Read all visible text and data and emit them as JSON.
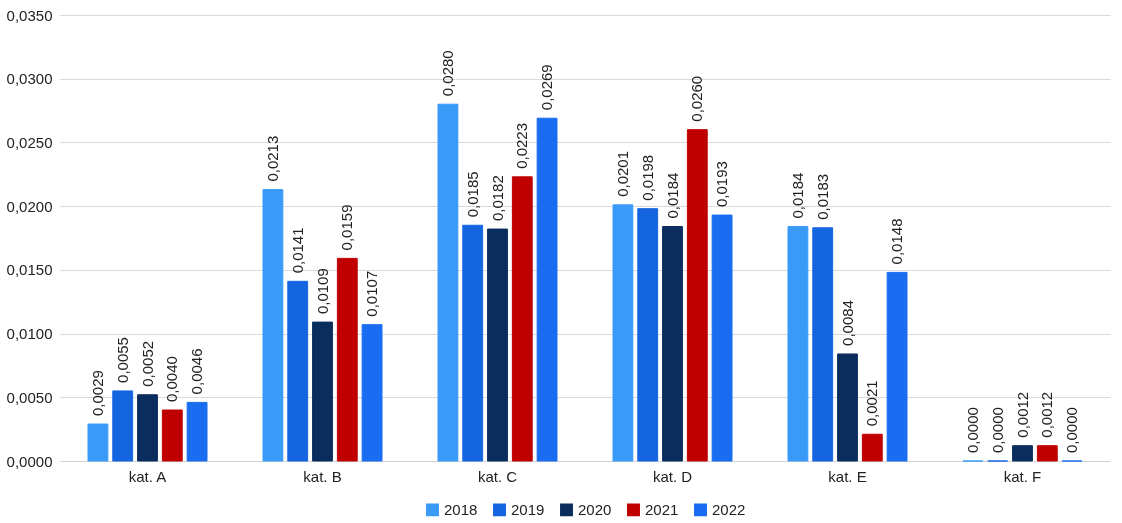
{
  "chart_data": {
    "type": "bar",
    "categories": [
      "kat. A",
      "kat. B",
      "kat. C",
      "kat. D",
      "kat. E",
      "kat. F"
    ],
    "series": [
      {
        "name": "2018",
        "color": "#3a9af8",
        "values": [
          0.0029,
          0.0213,
          0.028,
          0.0201,
          0.0184,
          0.0
        ],
        "value_labels": [
          "0,0029",
          "0,0213",
          "0,0280",
          "0,0201",
          "0,0184",
          "0,0000"
        ]
      },
      {
        "name": "2019",
        "color": "#1565e0",
        "values": [
          0.0055,
          0.0141,
          0.0185,
          0.0198,
          0.0183,
          0.0
        ],
        "value_labels": [
          "0,0055",
          "0,0141",
          "0,0185",
          "0,0198",
          "0,0183",
          "0,0000"
        ]
      },
      {
        "name": "2020",
        "color": "#0b2d5e",
        "values": [
          0.0052,
          0.0109,
          0.0182,
          0.0184,
          0.0084,
          0.0012
        ],
        "value_labels": [
          "0,0052",
          "0,0109",
          "0,0182",
          "0,0184",
          "0,0084",
          "0,0012"
        ]
      },
      {
        "name": "2021",
        "color": "#c00000",
        "values": [
          0.004,
          0.0159,
          0.0223,
          0.026,
          0.0021,
          0.0012
        ],
        "value_labels": [
          "0,0040",
          "0,0159",
          "0,0223",
          "0,0260",
          "0,0021",
          "0,0012"
        ]
      },
      {
        "name": "2022",
        "color": "#1a6cf0",
        "values": [
          0.0046,
          0.0107,
          0.0269,
          0.0193,
          0.0148,
          0.0
        ],
        "value_labels": [
          "0,0046",
          "0,0107",
          "0,0269",
          "0,0193",
          "0,0148",
          "0,0000"
        ]
      }
    ],
    "ylim": [
      0,
      0.035
    ],
    "yticks": [
      {
        "value": 0,
        "label": "0,0000"
      },
      {
        "value": 0.005,
        "label": "0,0050"
      },
      {
        "value": 0.01,
        "label": "0,0100"
      },
      {
        "value": 0.015,
        "label": "0,0150"
      },
      {
        "value": 0.02,
        "label": "0,0200"
      },
      {
        "value": 0.025,
        "label": "0,0250"
      },
      {
        "value": 0.03,
        "label": "0,0300"
      },
      {
        "value": 0.035,
        "label": "0,0350"
      }
    ],
    "grid": "y",
    "legend": "bottom"
  }
}
